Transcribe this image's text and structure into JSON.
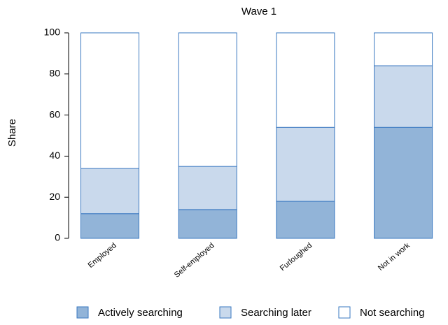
{
  "chart_data": {
    "type": "stacked_bar",
    "title": "Wave 1",
    "y_label": "Share",
    "categories": [
      "Employed",
      "Self-employed",
      "Furloughed",
      "Not in work"
    ],
    "series": [
      {
        "name": "Actively searching",
        "color": "#92b4d8",
        "values": [
          12,
          14,
          18,
          54
        ]
      },
      {
        "name": "Searching later",
        "color": "#c9d9ec",
        "values": [
          22,
          21,
          36,
          30
        ]
      },
      {
        "name": "Not searching",
        "color": "#ffffff",
        "values": [
          66,
          65,
          46,
          16
        ]
      }
    ],
    "edge_color": "#3a78c0",
    "ylim": [
      0,
      100
    ],
    "yticks": [
      0,
      20,
      40,
      60,
      80,
      100
    ],
    "legend": "bottom"
  }
}
